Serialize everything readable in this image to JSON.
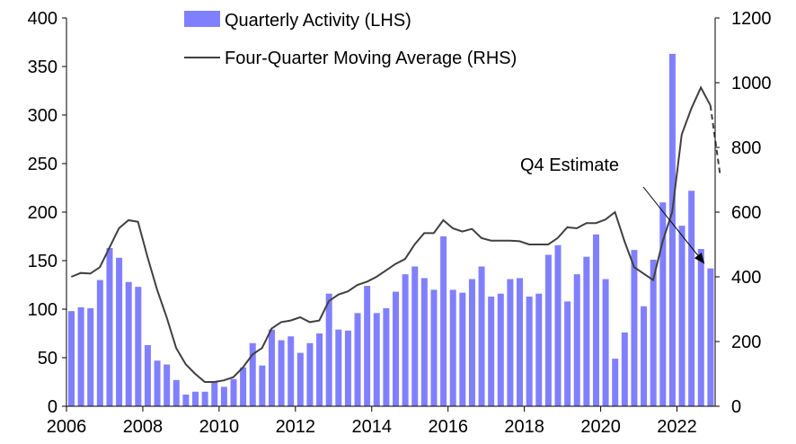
{
  "chart_data": {
    "type": "bar",
    "title": "",
    "xlabel": "",
    "ylabel_left": "",
    "ylabel_right": "",
    "x_range": [
      2006,
      2023
    ],
    "x_ticks": [
      2006,
      2008,
      2010,
      2012,
      2014,
      2016,
      2018,
      2020,
      2022
    ],
    "left_axis": {
      "range": [
        0,
        400
      ],
      "ticks": [
        0,
        50,
        100,
        150,
        200,
        250,
        300,
        350,
        400
      ]
    },
    "right_axis": {
      "range": [
        0,
        1200
      ],
      "ticks": [
        0,
        200,
        400,
        600,
        800,
        1000,
        1200
      ]
    },
    "legend": {
      "position": "top-center"
    },
    "annotation": {
      "text": "Q4 Estimate",
      "target_x": 2022.6,
      "target_y_right": 440
    },
    "series": [
      {
        "name": "Quarterly Activity (LHS)",
        "kind": "bar",
        "axis": "left",
        "color": "#8080ff",
        "x": [
          2006.0,
          2006.25,
          2006.5,
          2006.75,
          2007.0,
          2007.25,
          2007.5,
          2007.75,
          2008.0,
          2008.25,
          2008.5,
          2008.75,
          2009.0,
          2009.25,
          2009.5,
          2009.75,
          2010.0,
          2010.25,
          2010.5,
          2010.75,
          2011.0,
          2011.25,
          2011.5,
          2011.75,
          2012.0,
          2012.25,
          2012.5,
          2012.75,
          2013.0,
          2013.25,
          2013.5,
          2013.75,
          2014.0,
          2014.25,
          2014.5,
          2014.75,
          2015.0,
          2015.25,
          2015.5,
          2015.75,
          2016.0,
          2016.25,
          2016.5,
          2016.75,
          2017.0,
          2017.25,
          2017.5,
          2017.75,
          2018.0,
          2018.25,
          2018.5,
          2018.75,
          2019.0,
          2019.25,
          2019.5,
          2019.75,
          2020.0,
          2020.25,
          2020.5,
          2020.75,
          2021.0,
          2021.25,
          2021.5,
          2021.75,
          2022.0,
          2022.25,
          2022.5,
          2022.75
        ],
        "values": [
          98,
          102,
          101,
          130,
          163,
          153,
          128,
          123,
          63,
          47,
          43,
          27,
          12,
          15,
          15,
          26,
          20,
          28,
          40,
          65,
          42,
          79,
          68,
          72,
          55,
          65,
          75,
          116,
          79,
          78,
          96,
          124,
          96,
          101,
          118,
          136,
          144,
          132,
          120,
          175,
          120,
          117,
          131,
          144,
          113,
          116,
          131,
          132,
          113,
          116,
          156,
          166,
          108,
          136,
          154,
          177,
          131,
          49,
          76,
          161,
          103,
          151,
          210,
          363,
          186,
          222,
          162,
          142
        ]
      },
      {
        "name": "Four-Quarter Moving Average (RHS)",
        "kind": "line",
        "axis": "right",
        "color": "#404040",
        "x": [
          2006.0,
          2006.25,
          2006.5,
          2006.75,
          2007.0,
          2007.25,
          2007.5,
          2007.75,
          2008.0,
          2008.25,
          2008.5,
          2008.75,
          2009.0,
          2009.25,
          2009.5,
          2009.75,
          2010.0,
          2010.25,
          2010.5,
          2010.75,
          2011.0,
          2011.25,
          2011.5,
          2011.75,
          2012.0,
          2012.25,
          2012.5,
          2012.75,
          2013.0,
          2013.25,
          2013.5,
          2013.75,
          2014.0,
          2014.25,
          2014.5,
          2014.75,
          2015.0,
          2015.25,
          2015.5,
          2015.75,
          2016.0,
          2016.25,
          2016.5,
          2016.75,
          2017.0,
          2017.25,
          2017.5,
          2017.75,
          2018.0,
          2018.25,
          2018.5,
          2018.75,
          2019.0,
          2019.25,
          2019.5,
          2019.75,
          2020.0,
          2020.25,
          2020.5,
          2020.75,
          2021.0,
          2021.25,
          2021.5,
          2021.75,
          2022.0,
          2022.25,
          2022.5,
          2022.75
        ],
        "values": [
          400,
          412,
          410,
          430,
          490,
          550,
          575,
          570,
          460,
          360,
          275,
          180,
          130,
          100,
          75,
          75,
          80,
          90,
          120,
          160,
          180,
          240,
          260,
          265,
          275,
          260,
          265,
          325,
          345,
          355,
          375,
          385,
          400,
          420,
          440,
          455,
          500,
          535,
          535,
          575,
          550,
          540,
          548,
          520,
          512,
          512,
          512,
          510,
          500,
          500,
          500,
          520,
          553,
          550,
          566,
          566,
          577,
          600,
          510,
          430,
          410,
          390,
          510,
          600,
          840,
          920,
          985,
          930
        ],
        "dashed_extension": {
          "x": [
            2022.75,
            2023.0
          ],
          "values": [
            930,
            720
          ]
        }
      }
    ]
  }
}
